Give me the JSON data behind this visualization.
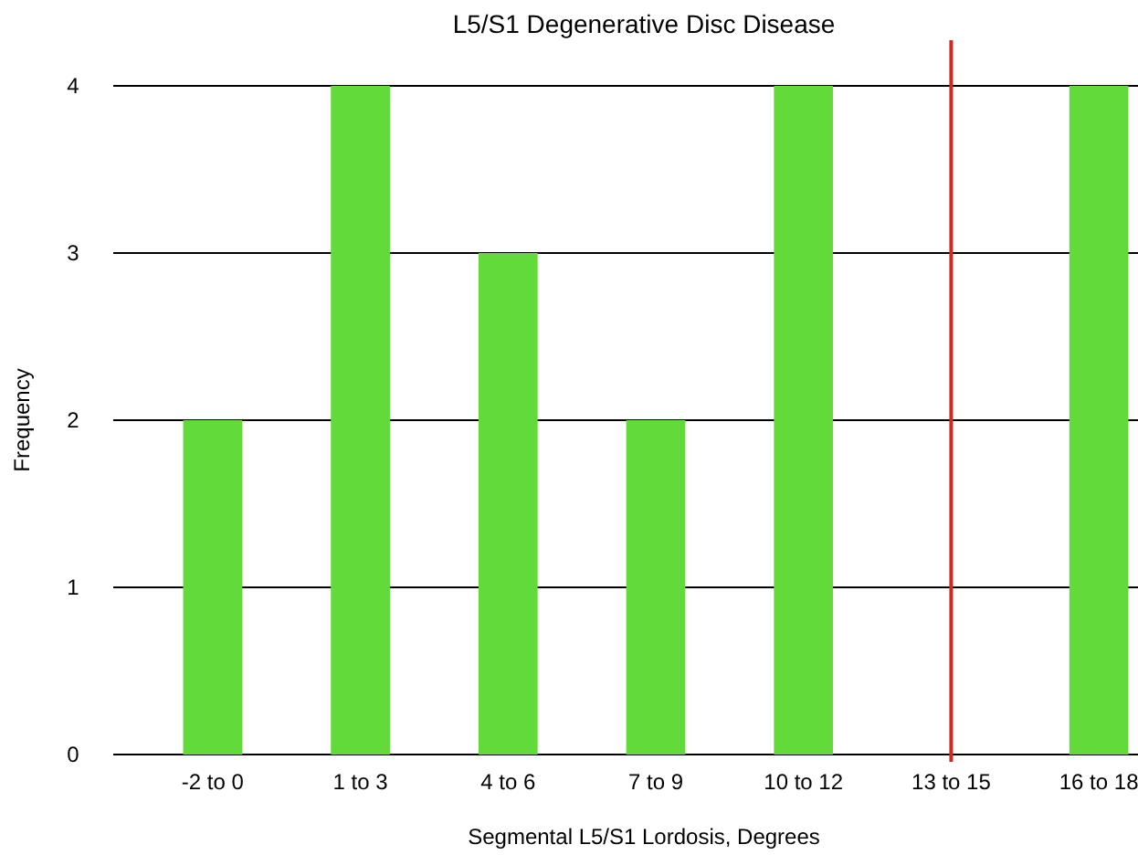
{
  "chart_data": {
    "type": "bar",
    "title": "L5/S1 Degenerative Disc Disease",
    "xlabel": "Segmental L5/S1 Lordosis, Degrees",
    "ylabel": "Frequency",
    "categories": [
      "-2 to 0",
      "1 to 3",
      "4 to 6",
      "7 to 9",
      "10 to 12",
      "13 to 15",
      "16 to 18"
    ],
    "values": [
      2,
      4,
      3,
      2,
      4,
      0,
      4
    ],
    "color": "#62da3a",
    "ylim": [
      0,
      4
    ],
    "yticks": [
      0,
      1,
      2,
      3,
      4
    ],
    "grid": "y",
    "ref_lines": [
      {
        "axis": "x",
        "value": "13 to 15",
        "color": "#d42a1e"
      }
    ]
  }
}
